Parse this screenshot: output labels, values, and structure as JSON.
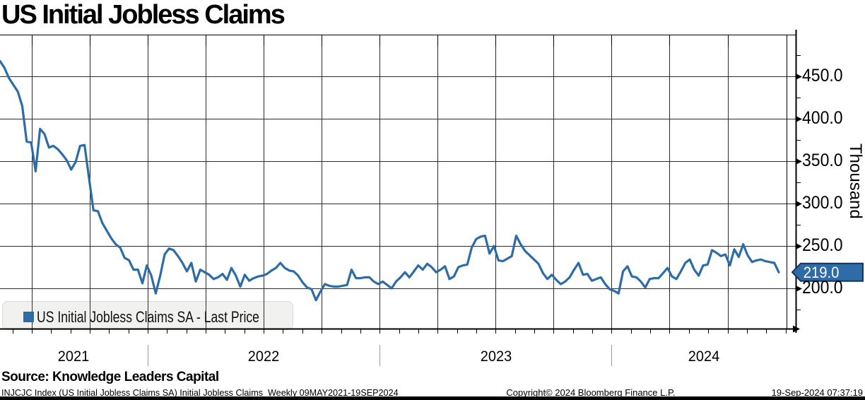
{
  "title": "US Initial Jobless Claims",
  "legend": {
    "label": "US Initial Jobless Claims SA - Last Price"
  },
  "y_axis": {
    "unit_label": "Thousand",
    "major_tick_values": [
      450.0,
      400.0,
      350.0,
      300.0,
      250.0,
      200.0
    ],
    "minor_tick_values": [
      475,
      425,
      375,
      325,
      275,
      225,
      175
    ]
  },
  "x_axis": {
    "years": [
      "2021",
      "2022",
      "2023",
      "2024"
    ],
    "gridline_interval": "quarterly",
    "minor_tick_interval": "monthly"
  },
  "last_price_badge": {
    "value": "219.0"
  },
  "footer": {
    "source": "Source: Knowledge Leaders Capital",
    "description": "INJCJC Index (US Initial Jobless Claims SA) Initial Jobless Claims  Weekly 09MAY2021-19SEP2024",
    "copyright": "Copyright© 2024 Bloomberg Finance L.P.",
    "timestamp": "19-Sep-2024 07:37:19"
  },
  "colors": {
    "line": "#2d6ca6",
    "badge_fill": "#2d6ca6",
    "badge_border": "#15365a",
    "grid": "#2b2b2b",
    "spine": "#000000",
    "year_separator": "#999999",
    "legend_bg": "#f1f1f0"
  },
  "chart_data": {
    "type": "line",
    "frequency": "Weekly",
    "x_range": [
      "09MAY2021",
      "19SEP2024"
    ],
    "ylabel": "Thousand",
    "ylim": [
      152,
      500
    ],
    "y_major_gridlines": [
      200,
      250,
      300,
      350,
      400,
      450
    ],
    "last_value": 219.0,
    "series": [
      {
        "name": "US Initial Jobless Claims SA - Last Price",
        "values": [
          468,
          460,
          448,
          440,
          432,
          415,
          373,
          372,
          338,
          388,
          382,
          366,
          368,
          364,
          358,
          351,
          340,
          349,
          368,
          369,
          330,
          292,
          291,
          277,
          268,
          259,
          252,
          248,
          236,
          233,
          222,
          222,
          206,
          227,
          215,
          194,
          215,
          240,
          247,
          245,
          238,
          230,
          220,
          230,
          208,
          222,
          219,
          216,
          211,
          213,
          217,
          210,
          224,
          215,
          202,
          216,
          209,
          212,
          214,
          215,
          217,
          221,
          224,
          230,
          224,
          221,
          220,
          215,
          207,
          201,
          199,
          186,
          196,
          205,
          203,
          202,
          202,
          203,
          204,
          222,
          212,
          212,
          213,
          213,
          208,
          205,
          208,
          204,
          200,
          208,
          213,
          219,
          213,
          220,
          227,
          222,
          229,
          225,
          219,
          222,
          226,
          211,
          214,
          225,
          227,
          228,
          248,
          258,
          261,
          262,
          241,
          250,
          233,
          232,
          235,
          238,
          262,
          252,
          244,
          239,
          234,
          229,
          218,
          211,
          216,
          210,
          205,
          208,
          213,
          222,
          230,
          216,
          217,
          209,
          211,
          213,
          205,
          199,
          197,
          194,
          220,
          226,
          214,
          213,
          208,
          201,
          211,
          212,
          212,
          218,
          224,
          214,
          211,
          220,
          230,
          234,
          222,
          215,
          227,
          228,
          245,
          242,
          238,
          240,
          227,
          246,
          237,
          252,
          239,
          231,
          233,
          234,
          232,
          231,
          230,
          219
        ]
      }
    ]
  }
}
